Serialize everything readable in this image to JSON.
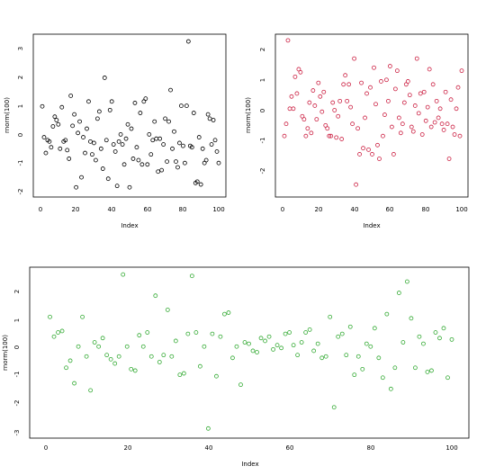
{
  "chart_data": [
    {
      "type": "scatter",
      "title": "",
      "xlabel": "Index",
      "ylabel": "rnorm(100)",
      "xlim": [
        0,
        100
      ],
      "ylim": [
        -2,
        3.3
      ],
      "xticks": [
        "0",
        "20",
        "40",
        "60",
        "80",
        "100"
      ],
      "yticks": [
        "-2",
        "-1",
        "0",
        "1",
        "2",
        "3"
      ],
      "point_color": "#000000",
      "x": [
        1,
        2,
        3,
        4,
        5,
        6,
        7,
        8,
        9,
        10,
        11,
        12,
        13,
        14,
        15,
        16,
        17,
        18,
        19,
        20,
        21,
        22,
        23,
        24,
        25,
        26,
        27,
        28,
        29,
        30,
        31,
        32,
        33,
        34,
        35,
        36,
        37,
        38,
        39,
        40,
        41,
        42,
        43,
        44,
        45,
        46,
        47,
        48,
        49,
        50,
        51,
        52,
        53,
        54,
        55,
        56,
        57,
        58,
        59,
        60,
        61,
        62,
        63,
        64,
        65,
        66,
        67,
        68,
        69,
        70,
        71,
        72,
        73,
        74,
        75,
        76,
        77,
        78,
        79,
        80,
        81,
        82,
        83,
        84,
        85,
        86,
        87,
        88,
        89,
        90,
        91,
        92,
        93,
        94,
        95,
        96,
        97,
        98,
        99,
        100
      ],
      "y": [
        0.98,
        -0.1,
        -0.65,
        -0.2,
        -0.25,
        -0.45,
        0.28,
        0.62,
        0.5,
        0.35,
        -0.5,
        0.95,
        -0.25,
        -0.2,
        -0.55,
        -0.85,
        1.35,
        0.3,
        0.7,
        -1.85,
        0.05,
        0.45,
        -1.5,
        -0.1,
        -0.65,
        0.2,
        1.15,
        -0.25,
        -0.7,
        -0.3,
        -0.9,
        0.55,
        0.8,
        -0.5,
        -1.2,
        1.98,
        -0.2,
        -1.55,
        0.85,
        1.15,
        -0.35,
        -0.6,
        -1.8,
        -0.25,
        0.0,
        -0.35,
        -1.05,
        -0.15,
        0.35,
        -1.85,
        0.2,
        -0.85,
        1.1,
        -0.45,
        -0.9,
        0.75,
        -1.05,
        1.15,
        1.25,
        -1.05,
        0.0,
        -0.7,
        -0.2,
        0.45,
        -0.15,
        -1.3,
        -0.15,
        -1.25,
        -0.35,
        0.55,
        -0.95,
        0.45,
        1.55,
        -0.5,
        0.1,
        -0.95,
        -1.15,
        -0.3,
        1.0,
        -0.4,
        -1.0,
        1.0,
        3.25,
        -0.4,
        -0.45,
        0.75,
        -1.7,
        -1.65,
        -0.1,
        -1.75,
        -0.5,
        -1.0,
        -0.9,
        0.7,
        0.55,
        -0.35,
        0.5,
        -0.2,
        -0.6,
        -1.0
      ]
    },
    {
      "type": "scatter",
      "title": "",
      "xlabel": "Index",
      "ylabel": "rnorm(100)",
      "xlim": [
        0,
        100
      ],
      "ylim": [
        -2.6,
        2.3
      ],
      "xticks": [
        "0",
        "20",
        "40",
        "60",
        "80",
        "100"
      ],
      "yticks": [
        "-2",
        "-1",
        "0",
        "1",
        "2"
      ],
      "point_color": "#cc2244",
      "x": [
        1,
        2,
        3,
        4,
        5,
        6,
        7,
        8,
        9,
        10,
        11,
        12,
        13,
        14,
        15,
        16,
        17,
        18,
        19,
        20,
        21,
        22,
        23,
        24,
        25,
        26,
        27,
        28,
        29,
        30,
        31,
        32,
        33,
        34,
        35,
        36,
        37,
        38,
        39,
        40,
        41,
        42,
        43,
        44,
        45,
        46,
        47,
        48,
        49,
        50,
        51,
        52,
        53,
        54,
        55,
        56,
        57,
        58,
        59,
        60,
        61,
        62,
        63,
        64,
        65,
        66,
        67,
        68,
        69,
        70,
        71,
        72,
        73,
        74,
        75,
        76,
        77,
        78,
        79,
        80,
        81,
        82,
        83,
        84,
        85,
        86,
        87,
        88,
        89,
        90,
        91,
        92,
        93,
        94,
        95,
        96,
        97,
        98,
        99,
        100
      ],
      "y": [
        -0.85,
        -0.45,
        2.3,
        0.05,
        0.45,
        0.05,
        1.1,
        0.55,
        1.35,
        1.25,
        -0.2,
        -0.3,
        -0.85,
        -0.6,
        0.25,
        -0.75,
        0.65,
        0.15,
        -0.3,
        0.9,
        0.45,
        -0.05,
        0.6,
        -0.5,
        -0.6,
        -0.85,
        -0.85,
        0.25,
        0.0,
        -0.9,
        -0.2,
        0.3,
        -0.95,
        0.85,
        1.15,
        0.3,
        0.85,
        0.1,
        -0.45,
        1.7,
        -2.45,
        -0.6,
        -1.45,
        0.9,
        -1.25,
        -0.25,
        0.55,
        -1.3,
        0.75,
        -1.45,
        1.4,
        0.2,
        -1.15,
        -1.6,
        0.95,
        -0.85,
        -0.15,
        1.0,
        0.3,
        1.45,
        -0.55,
        -1.45,
        0.7,
        1.3,
        -0.25,
        -0.75,
        -0.45,
        0.25,
        0.85,
        0.95,
        0.5,
        -0.55,
        -0.7,
        0.15,
        1.7,
        -0.1,
        0.55,
        -0.8,
        0.6,
        -0.35,
        0.1,
        1.35,
        -0.55,
        0.85,
        -0.4,
        0.3,
        -0.25,
        0.05,
        -0.45,
        -0.65,
        0.6,
        -0.45,
        -1.6,
        0.35,
        -0.55,
        -0.8,
        0.05,
        0.75,
        -0.85,
        1.3
      ]
    },
    {
      "type": "scatter",
      "title": "",
      "xlabel": "Index",
      "ylabel": "rnorm(100)",
      "xlim": [
        0,
        100
      ],
      "ylim": [
        -3,
        2.7
      ],
      "xticks": [
        "0",
        "20",
        "40",
        "60",
        "80",
        "100"
      ],
      "yticks": [
        "-3",
        "-2",
        "-1",
        "0",
        "1",
        "2"
      ],
      "point_color": "#33aa33",
      "x": [
        1,
        2,
        3,
        4,
        5,
        6,
        7,
        8,
        9,
        10,
        11,
        12,
        13,
        14,
        15,
        16,
        17,
        18,
        19,
        20,
        21,
        22,
        23,
        24,
        25,
        26,
        27,
        28,
        29,
        30,
        31,
        32,
        33,
        34,
        35,
        36,
        37,
        38,
        39,
        40,
        41,
        42,
        43,
        44,
        45,
        46,
        47,
        48,
        49,
        50,
        51,
        52,
        53,
        54,
        55,
        56,
        57,
        58,
        59,
        60,
        61,
        62,
        63,
        64,
        65,
        66,
        67,
        68,
        69,
        70,
        71,
        72,
        73,
        74,
        75,
        76,
        77,
        78,
        79,
        80,
        81,
        82,
        83,
        84,
        85,
        86,
        87,
        88,
        89,
        90,
        91,
        92,
        93,
        94,
        95,
        96,
        97,
        98,
        99,
        100
      ],
      "y": [
        1.1,
        0.4,
        0.55,
        0.6,
        -0.7,
        -0.45,
        -1.25,
        0.05,
        1.1,
        -0.3,
        -1.5,
        0.2,
        0.05,
        0.35,
        -0.25,
        -0.4,
        -0.55,
        -0.3,
        2.6,
        0.05,
        -0.75,
        -0.8,
        0.45,
        0.05,
        0.55,
        -0.3,
        1.85,
        -0.5,
        -0.25,
        1.35,
        -0.3,
        0.25,
        -0.95,
        -0.9,
        0.5,
        2.55,
        0.55,
        -0.65,
        0.05,
        -2.85,
        0.5,
        -1.0,
        0.4,
        1.2,
        1.25,
        -0.35,
        0.05,
        -1.3,
        0.2,
        0.15,
        -0.1,
        -0.15,
        0.35,
        0.25,
        0.4,
        -0.05,
        0.1,
        0.0,
        0.5,
        0.55,
        0.1,
        -0.25,
        0.2,
        0.55,
        0.65,
        -0.1,
        0.15,
        -0.35,
        -0.3,
        1.1,
        -2.1,
        0.4,
        0.5,
        -0.25,
        0.75,
        -0.95,
        -0.3,
        -0.75,
        0.15,
        0.05,
        0.7,
        -0.35,
        -1.05,
        1.2,
        -1.45,
        -0.7,
        1.95,
        0.2,
        2.35,
        1.05,
        -0.7,
        0.4,
        0.15,
        -0.85,
        -0.8,
        0.55,
        0.35,
        0.7,
        -1.05,
        0.3
      ]
    }
  ]
}
